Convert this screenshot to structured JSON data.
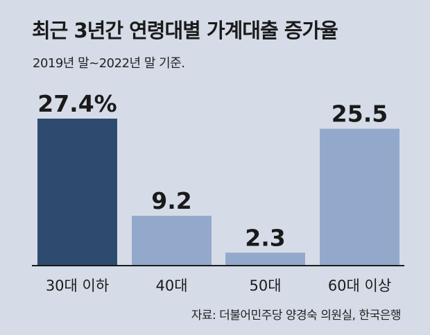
{
  "chart_data": {
    "type": "bar",
    "title": "최근 3년간 연령대별 가계대출 증가율",
    "subtitle": "2019년 말~2022년 말 기준.",
    "source": "자료: 더불어민주당 양경숙 의원실, 한국은행",
    "categories": [
      "30대 이하",
      "40대",
      "50대",
      "60대 이상"
    ],
    "values": [
      27.4,
      9.2,
      2.3,
      25.5
    ],
    "value_labels": [
      "27.4%",
      "9.2",
      "2.3",
      "25.5"
    ],
    "unit": "%",
    "ylim": [
      0,
      27.4
    ],
    "grid": false,
    "legend": "none",
    "colors": {
      "highlight": "#2e4a6e",
      "bar": "#93a9cb",
      "background": "#d5dce8"
    }
  }
}
